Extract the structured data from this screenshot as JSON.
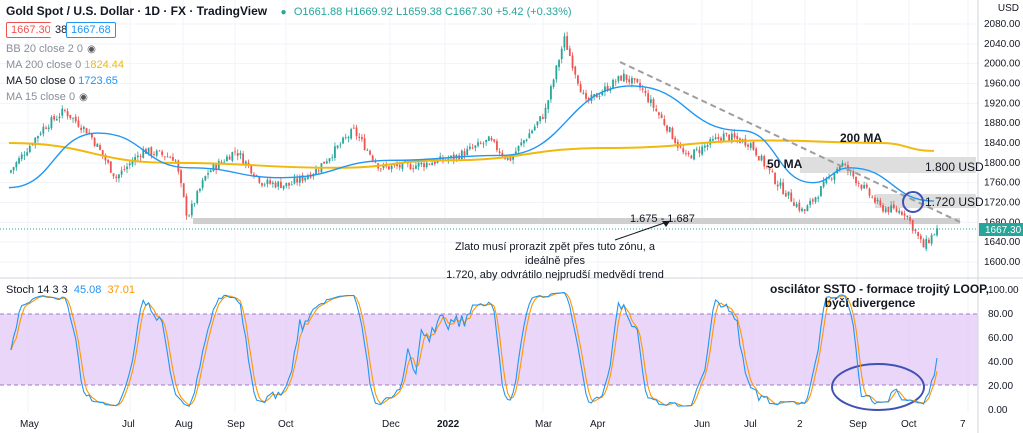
{
  "header": {
    "title": "Gold Spot / U.S. Dollar · 1D · FX · TradingView",
    "ohlc": "O1661.88 H1669.92 L1659.38 C1667.30 +5.42 (+0.33%)",
    "bid": "1667.30",
    "spread": "38",
    "ask": "1667.68",
    "currency": "USD"
  },
  "indicators": [
    {
      "label": "BB 20 close 2 0",
      "value": "",
      "color": "#8a8f9c"
    },
    {
      "label": "MA 200 close 0",
      "value": "1824.44",
      "color": "#f0b90b"
    },
    {
      "label": "MA 50 close 0",
      "value": "1723.65",
      "color": "#2196f3"
    },
    {
      "label": "MA 15 close 0",
      "value": "",
      "color": "#8a8f9c"
    }
  ],
  "stoch": {
    "label": "Stoch 14 3 3",
    "k": "45.08",
    "d": "37.01",
    "k_color": "#2196f3",
    "d_color": "#ff9800"
  },
  "annotations": {
    "ma200": "200 MA",
    "ma50": "50 MA",
    "level1800": "1.800 USD",
    "level1720": "1.720 USD",
    "zone": "1.675 - 1.687",
    "note_line1": "Zlato musí prorazit zpět přes tuto zónu, a ideálně přes",
    "note_line2": "1.720, aby odvrátilo nejprudší medvědí trend",
    "osc_line1": "oscilátor SSTO - formace trojitý LOOP,",
    "osc_line2": "býčí divergence"
  },
  "colors": {
    "up": "#26a69a",
    "down": "#ef5350",
    "ma200": "#f0b90b",
    "ma50": "#2196f3",
    "stoch_bg": "#e1c8f7",
    "circle": "#3f51b5"
  },
  "chart_data": {
    "type": "candlestick",
    "price_axis": {
      "ticks": [
        1600,
        1640,
        1680,
        1720,
        1760,
        1800,
        1840,
        1880,
        1920,
        1960,
        2000,
        2040,
        2080
      ],
      "last": "1667.30"
    },
    "stoch_axis": {
      "ticks": [
        0,
        20,
        40,
        60,
        80,
        100
      ],
      "bands": [
        20,
        80
      ]
    },
    "x_labels": [
      "May",
      "Jul",
      "Aug",
      "Sep",
      "Oct",
      "Dec",
      "2022",
      "Mar",
      "Apr",
      "Jun",
      "Jul",
      "2",
      "Sep",
      "Oct",
      "7"
    ],
    "close_path": [
      [
        "2021-05",
        1780
      ],
      [
        "2021-05-20",
        1870
      ],
      [
        "2021-06-01",
        1905
      ],
      [
        "2021-06-15",
        1860
      ],
      [
        "2021-06-30",
        1770
      ],
      [
        "2021-07-15",
        1825
      ],
      [
        "2021-08-02",
        1810
      ],
      [
        "2021-08-09",
        1690
      ],
      [
        "2021-08-20",
        1780
      ],
      [
        "2021-09-05",
        1825
      ],
      [
        "2021-09-20",
        1760
      ],
      [
        "2021-10-05",
        1755
      ],
      [
        "2021-10-20",
        1785
      ],
      [
        "2021-11-10",
        1865
      ],
      [
        "2021-11-25",
        1790
      ],
      [
        "2021-12-15",
        1795
      ],
      [
        "2022-01-05",
        1810
      ],
      [
        "2022-01-25",
        1845
      ],
      [
        "2022-02-05",
        1805
      ],
      [
        "2022-02-25",
        1900
      ],
      [
        "2022-03-08",
        2050
      ],
      [
        "2022-03-20",
        1920
      ],
      [
        "2022-04-10",
        1975
      ],
      [
        "2022-04-20",
        1950
      ],
      [
        "2022-05-05",
        1870
      ],
      [
        "2022-05-15",
        1810
      ],
      [
        "2022-06-05",
        1855
      ],
      [
        "2022-06-20",
        1840
      ],
      [
        "2022-07-05",
        1760
      ],
      [
        "2022-07-20",
        1700
      ],
      [
        "2022-08-10",
        1800
      ],
      [
        "2022-08-20",
        1760
      ],
      [
        "2022-09-01",
        1710
      ],
      [
        "2022-09-15",
        1700
      ],
      [
        "2022-09-25",
        1630
      ],
      [
        "2022-10-03",
        1667
      ]
    ],
    "ma200": [
      [
        "2021-05",
        1840
      ],
      [
        "2021-08",
        1800
      ],
      [
        "2021-11",
        1790
      ],
      [
        "2022-01",
        1805
      ],
      [
        "2022-04",
        1830
      ],
      [
        "2022-07",
        1845
      ],
      [
        "2022-09",
        1840
      ],
      [
        "2022-10",
        1824
      ]
    ],
    "ma50": [
      [
        "2021-05",
        1750
      ],
      [
        "2021-06-20",
        1860
      ],
      [
        "2021-08-10",
        1790
      ],
      [
        "2021-10",
        1770
      ],
      [
        "2021-12",
        1805
      ],
      [
        "2022-02",
        1815
      ],
      [
        "2022-04-15",
        1955
      ],
      [
        "2022-06-15",
        1865
      ],
      [
        "2022-07-25",
        1760
      ],
      [
        "2022-08-15",
        1790
      ],
      [
        "2022-10",
        1723
      ]
    ]
  }
}
